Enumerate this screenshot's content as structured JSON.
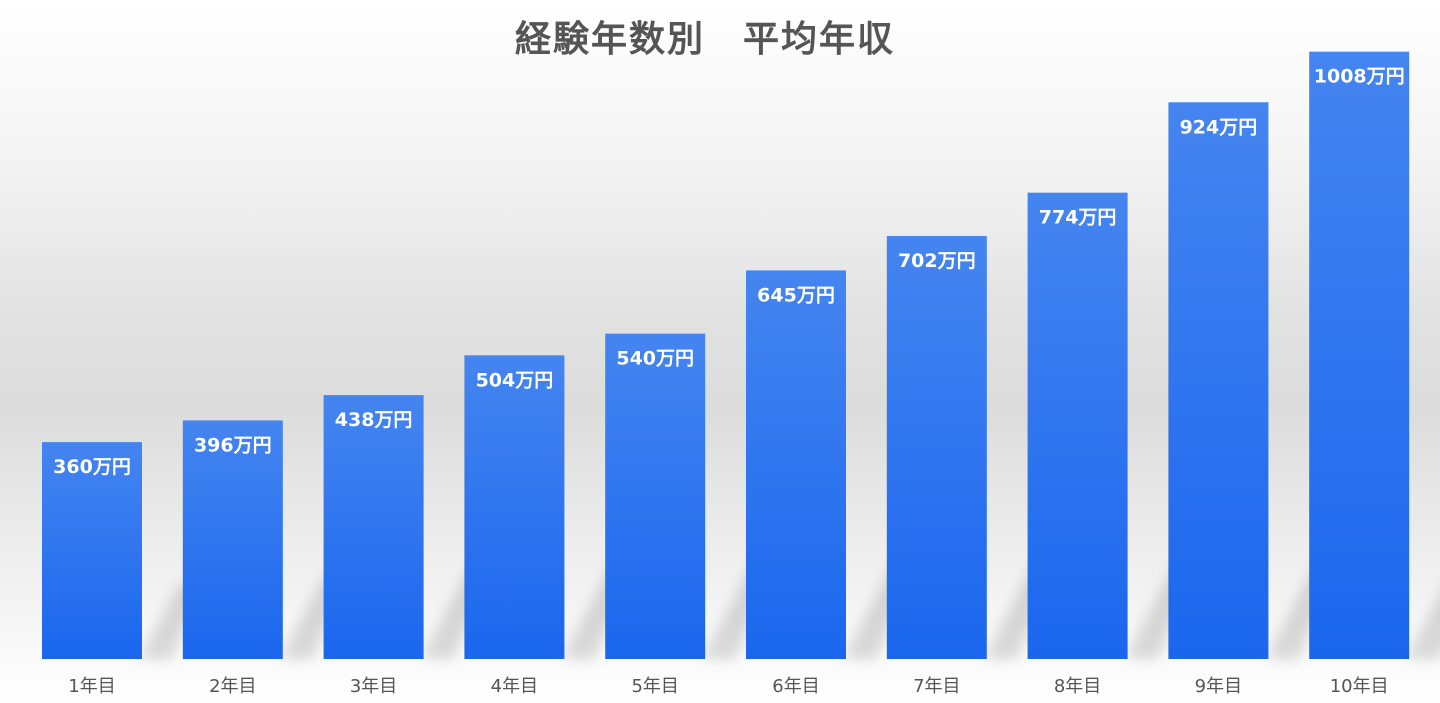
{
  "chart_data": {
    "type": "bar",
    "title": "経験年数別　平均年収",
    "xlabel": "",
    "ylabel": "",
    "categories": [
      "1年目",
      "2年目",
      "3年目",
      "4年目",
      "5年目",
      "6年目",
      "7年目",
      "8年目",
      "9年目",
      "10年目"
    ],
    "values": [
      360,
      396,
      438,
      504,
      540,
      645,
      702,
      774,
      924,
      1008
    ],
    "value_labels": [
      "360万円",
      "396万円",
      "438万円",
      "504万円",
      "540万円",
      "645万円",
      "702万円",
      "774万円",
      "924万円",
      "1008万円"
    ],
    "unit": "万円",
    "grid": false,
    "legend": "none",
    "colors": {
      "bar_top": "#4585F0",
      "bar_bottom": "#1A66EE",
      "label": "#ffffff",
      "axis_text": "#555555",
      "title": "#555555"
    }
  }
}
